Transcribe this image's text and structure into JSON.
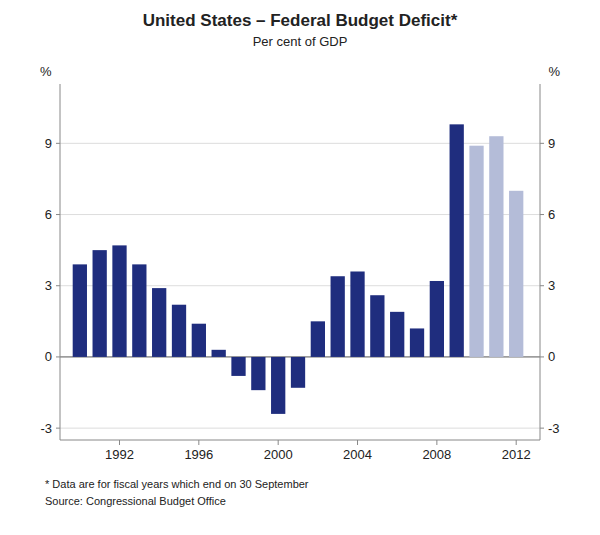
{
  "chart_data": {
    "type": "bar",
    "title": "United States – Federal Budget Deficit*",
    "subtitle": "Per cent of GDP",
    "ylabel": "%",
    "y2label": "%",
    "annotations": [
      "*    Data are for fiscal years which end on 30 September",
      "Source: Congressional Budget Office"
    ],
    "x": [
      1990,
      1991,
      1992,
      1993,
      1994,
      1995,
      1996,
      1997,
      1998,
      1999,
      2000,
      2001,
      2002,
      2003,
      2004,
      2005,
      2006,
      2007,
      2008,
      2009,
      2010,
      2011,
      2012
    ],
    "values": [
      3.9,
      4.5,
      4.7,
      3.9,
      2.9,
      2.2,
      1.4,
      0.3,
      -0.8,
      -1.4,
      -2.4,
      -1.3,
      1.5,
      3.4,
      3.6,
      2.6,
      1.9,
      1.2,
      3.2,
      9.8,
      8.9,
      9.3,
      7.0
    ],
    "colors": [
      "#1f2d7e",
      "#1f2d7e",
      "#1f2d7e",
      "#1f2d7e",
      "#1f2d7e",
      "#1f2d7e",
      "#1f2d7e",
      "#1f2d7e",
      "#1f2d7e",
      "#1f2d7e",
      "#1f2d7e",
      "#1f2d7e",
      "#1f2d7e",
      "#1f2d7e",
      "#1f2d7e",
      "#1f2d7e",
      "#1f2d7e",
      "#1f2d7e",
      "#1f2d7e",
      "#1f2d7e",
      "#b4bcd8",
      "#b4bcd8",
      "#b4bcd8"
    ],
    "xlim": [
      1989.0,
      2013.2
    ],
    "xticks": [
      1992,
      1996,
      2000,
      2004,
      2008,
      2012
    ],
    "ylim": [
      -3.5,
      11.5
    ],
    "yticks": [
      -3,
      0,
      3,
      6,
      9
    ],
    "y2lim": [
      -3.5,
      11.5
    ],
    "y2ticks": [
      -3,
      0,
      3,
      6,
      9
    ],
    "grid": true
  }
}
